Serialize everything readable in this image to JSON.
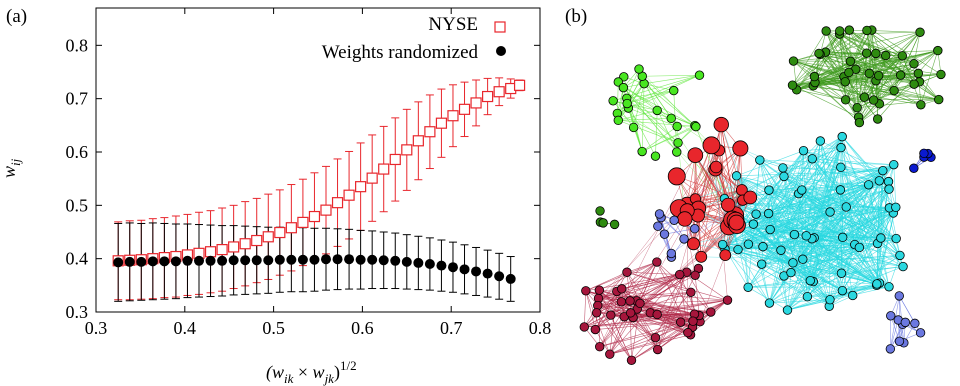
{
  "panel_a_label": "(a)",
  "panel_b_label": "(b)",
  "chart_data": {
    "type": "scatter",
    "xlabel": "(w_ik × w_jk)^1/2",
    "ylabel": "w_ij",
    "xlim": [
      0.3,
      0.8
    ],
    "ylim": [
      0.3,
      0.87
    ],
    "x_ticks": [
      "0.3",
      "0.4",
      "0.5",
      "0.6",
      "0.7",
      "0.8"
    ],
    "y_ticks": [
      "0.3",
      "0.4",
      "0.5",
      "0.6",
      "0.7",
      "0.8"
    ],
    "legend_position": "top-right",
    "series": [
      {
        "name": "NYSE",
        "marker": "open-square",
        "color": "#e8262c",
        "points": [
          {
            "x": 0.325,
            "y": 0.396,
            "err": 0.073
          },
          {
            "x": 0.338,
            "y": 0.397,
            "err": 0.074
          },
          {
            "x": 0.351,
            "y": 0.398,
            "err": 0.074
          },
          {
            "x": 0.364,
            "y": 0.4,
            "err": 0.075
          },
          {
            "x": 0.377,
            "y": 0.402,
            "err": 0.075
          },
          {
            "x": 0.39,
            "y": 0.404,
            "err": 0.076
          },
          {
            "x": 0.403,
            "y": 0.407,
            "err": 0.076
          },
          {
            "x": 0.416,
            "y": 0.41,
            "err": 0.077
          },
          {
            "x": 0.429,
            "y": 0.413,
            "err": 0.077
          },
          {
            "x": 0.442,
            "y": 0.417,
            "err": 0.078
          },
          {
            "x": 0.455,
            "y": 0.422,
            "err": 0.078
          },
          {
            "x": 0.468,
            "y": 0.428,
            "err": 0.079
          },
          {
            "x": 0.481,
            "y": 0.434,
            "err": 0.079
          },
          {
            "x": 0.494,
            "y": 0.441,
            "err": 0.08
          },
          {
            "x": 0.507,
            "y": 0.449,
            "err": 0.08
          },
          {
            "x": 0.52,
            "y": 0.458,
            "err": 0.081
          },
          {
            "x": 0.533,
            "y": 0.468,
            "err": 0.081
          },
          {
            "x": 0.546,
            "y": 0.479,
            "err": 0.082
          },
          {
            "x": 0.559,
            "y": 0.491,
            "err": 0.082
          },
          {
            "x": 0.572,
            "y": 0.505,
            "err": 0.082
          },
          {
            "x": 0.585,
            "y": 0.519,
            "err": 0.082
          },
          {
            "x": 0.598,
            "y": 0.535,
            "err": 0.082
          },
          {
            "x": 0.611,
            "y": 0.551,
            "err": 0.081
          },
          {
            "x": 0.624,
            "y": 0.568,
            "err": 0.08
          },
          {
            "x": 0.637,
            "y": 0.586,
            "err": 0.078
          },
          {
            "x": 0.65,
            "y": 0.604,
            "err": 0.076
          },
          {
            "x": 0.663,
            "y": 0.621,
            "err": 0.073
          },
          {
            "x": 0.676,
            "y": 0.638,
            "err": 0.069
          },
          {
            "x": 0.689,
            "y": 0.654,
            "err": 0.064
          },
          {
            "x": 0.702,
            "y": 0.668,
            "err": 0.058
          },
          {
            "x": 0.715,
            "y": 0.68,
            "err": 0.051
          },
          {
            "x": 0.728,
            "y": 0.692,
            "err": 0.043
          },
          {
            "x": 0.741,
            "y": 0.704,
            "err": 0.034
          },
          {
            "x": 0.754,
            "y": 0.713,
            "err": 0.026
          },
          {
            "x": 0.767,
            "y": 0.719,
            "err": 0.018
          },
          {
            "x": 0.777,
            "y": 0.725,
            "err": 0.01
          }
        ]
      },
      {
        "name": "Weights randomized",
        "marker": "filled-circle",
        "color": "#000000",
        "points": [
          {
            "x": 0.325,
            "y": 0.393,
            "err": 0.073
          },
          {
            "x": 0.338,
            "y": 0.394,
            "err": 0.073
          },
          {
            "x": 0.351,
            "y": 0.394,
            "err": 0.072
          },
          {
            "x": 0.364,
            "y": 0.395,
            "err": 0.072
          },
          {
            "x": 0.377,
            "y": 0.395,
            "err": 0.071
          },
          {
            "x": 0.39,
            "y": 0.395,
            "err": 0.07
          },
          {
            "x": 0.403,
            "y": 0.396,
            "err": 0.069
          },
          {
            "x": 0.416,
            "y": 0.396,
            "err": 0.068
          },
          {
            "x": 0.429,
            "y": 0.396,
            "err": 0.067
          },
          {
            "x": 0.442,
            "y": 0.396,
            "err": 0.066
          },
          {
            "x": 0.455,
            "y": 0.397,
            "err": 0.065
          },
          {
            "x": 0.468,
            "y": 0.397,
            "err": 0.064
          },
          {
            "x": 0.481,
            "y": 0.397,
            "err": 0.063
          },
          {
            "x": 0.494,
            "y": 0.397,
            "err": 0.062
          },
          {
            "x": 0.507,
            "y": 0.398,
            "err": 0.061
          },
          {
            "x": 0.52,
            "y": 0.398,
            "err": 0.06
          },
          {
            "x": 0.533,
            "y": 0.398,
            "err": 0.06
          },
          {
            "x": 0.546,
            "y": 0.398,
            "err": 0.059
          },
          {
            "x": 0.559,
            "y": 0.399,
            "err": 0.058
          },
          {
            "x": 0.572,
            "y": 0.399,
            "err": 0.057
          },
          {
            "x": 0.585,
            "y": 0.399,
            "err": 0.056
          },
          {
            "x": 0.598,
            "y": 0.398,
            "err": 0.055
          },
          {
            "x": 0.611,
            "y": 0.398,
            "err": 0.054
          },
          {
            "x": 0.624,
            "y": 0.397,
            "err": 0.053
          },
          {
            "x": 0.637,
            "y": 0.396,
            "err": 0.052
          },
          {
            "x": 0.65,
            "y": 0.394,
            "err": 0.051
          },
          {
            "x": 0.663,
            "y": 0.392,
            "err": 0.05
          },
          {
            "x": 0.676,
            "y": 0.39,
            "err": 0.049
          },
          {
            "x": 0.689,
            "y": 0.387,
            "err": 0.048
          },
          {
            "x": 0.702,
            "y": 0.384,
            "err": 0.047
          },
          {
            "x": 0.715,
            "y": 0.38,
            "err": 0.046
          },
          {
            "x": 0.728,
            "y": 0.376,
            "err": 0.045
          },
          {
            "x": 0.741,
            "y": 0.372,
            "err": 0.044
          },
          {
            "x": 0.754,
            "y": 0.367,
            "err": 0.043
          },
          {
            "x": 0.767,
            "y": 0.362,
            "err": 0.042
          }
        ]
      }
    ]
  },
  "network": {
    "clusters": [
      {
        "color": "#48e620",
        "edge": "#5ee63a",
        "count": 24
      },
      {
        "color": "#2e8b10",
        "edge": "#3d9a1c",
        "count": 46
      },
      {
        "color": "#2ad8e0",
        "edge": "#2ad8e0",
        "count": 70
      },
      {
        "color": "#a6163c",
        "edge": "#b02a4a",
        "count": 42
      },
      {
        "color": "#e8262c",
        "edge": "#d03a3a",
        "count": 28
      },
      {
        "color": "#0a1ad0",
        "edge": "#0a1ad0",
        "count": 5
      },
      {
        "color": "#2e8b10",
        "edge": "#2e8b10",
        "count": 4
      },
      {
        "color": "#6b78e0",
        "edge": "#6b78e0",
        "count": 9
      },
      {
        "color": "#6b78e0",
        "edge": "#6b78e0",
        "count": 10
      }
    ]
  }
}
